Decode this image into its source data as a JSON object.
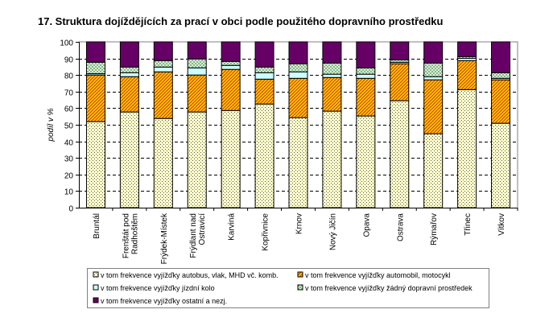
{
  "chart_data": {
    "type": "bar",
    "stacked": true,
    "title": "17. Struktura dojíždějících za prací v obci podle použitého dopravního prostředku",
    "xlabel": "",
    "ylabel": "podíl v %",
    "ylim": [
      0,
      100
    ],
    "yticks": [
      0,
      10,
      20,
      30,
      40,
      50,
      60,
      70,
      80,
      90,
      100
    ],
    "grid": true,
    "legend_position": "bottom",
    "categories": [
      "Bruntál",
      "Frenštát pod Radhoštěm",
      "Frýdek-Místek",
      "Frýdlant nad Ostravicí",
      "Karviná",
      "Kopřivnice",
      "Krnov",
      "Nový Jičín",
      "Opava",
      "Ostrava",
      "Rýmařov",
      "Třinec",
      "Vítkov"
    ],
    "series": [
      {
        "name": "v tom frekvence vyjížďky autobus, vlak, MHD vč. komb.",
        "color": "#FFFFCC",
        "pattern": "dots",
        "values": [
          51.9,
          57.7,
          53.8,
          57.7,
          58.6,
          62.5,
          54.3,
          58.2,
          55.3,
          64.5,
          44.6,
          71.2,
          50.9
        ]
      },
      {
        "name": "v tom frekvence vyjížďky automobil, motocykl",
        "color": "#FFCC00",
        "pattern": "hatch",
        "values": [
          28.1,
          21.3,
          28.1,
          22.3,
          24.8,
          15.0,
          23.7,
          20.3,
          22.7,
          22.3,
          32.5,
          17.5,
          26.2
        ]
      },
      {
        "name": "v tom frekvence vyjížďky jízdní kolo",
        "color": "#CCFFFF",
        "pattern": "solid",
        "values": [
          0.8,
          2.4,
          2.9,
          4.3,
          2.4,
          3.9,
          3.9,
          2.0,
          2.5,
          0.9,
          1.9,
          1.4,
          0.9
        ]
      },
      {
        "name": "v tom frekvence vyjížďky žádný dopravní prostředek",
        "color": "#CCFFCC",
        "pattern": "checker",
        "values": [
          6.9,
          3.4,
          3.9,
          5.4,
          2.4,
          3.4,
          4.9,
          6.7,
          3.8,
          1.5,
          8.2,
          1.0,
          3.4
        ]
      },
      {
        "name": "v tom frekvence vyjížďky ostatní a nezj.",
        "color": "#660066",
        "pattern": "solid",
        "values": [
          12.3,
          15.2,
          11.3,
          10.3,
          11.8,
          15.2,
          13.2,
          12.8,
          15.7,
          10.8,
          12.8,
          8.9,
          18.6
        ]
      }
    ]
  }
}
